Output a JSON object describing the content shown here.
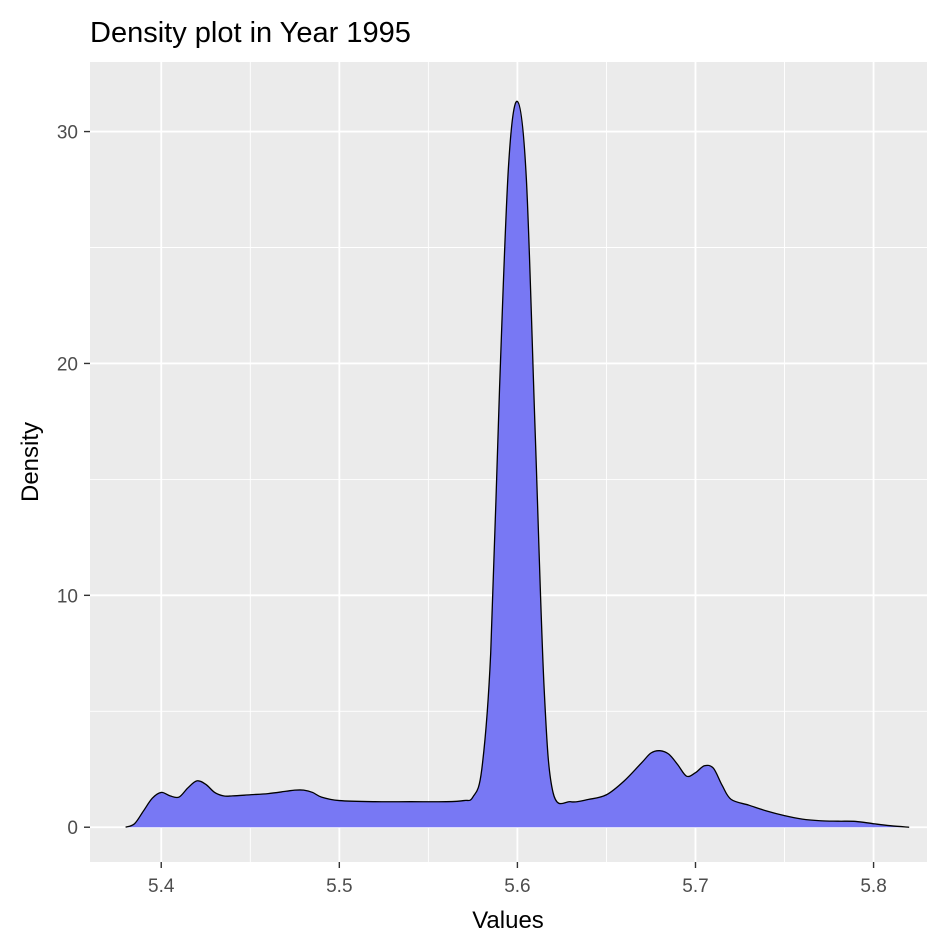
{
  "chart_data": {
    "type": "area",
    "title": "Density plot in Year 1995",
    "xlabel": "Values",
    "ylabel": "Density",
    "xlim": [
      5.36,
      5.83
    ],
    "ylim": [
      -1.5,
      33.0
    ],
    "x_ticks": [
      5.4,
      5.5,
      5.6,
      5.7,
      5.8
    ],
    "x_tick_labels": [
      "5.4",
      "5.5",
      "5.6",
      "5.7",
      "5.8"
    ],
    "y_ticks": [
      0,
      10,
      20,
      30
    ],
    "y_tick_labels": [
      "0",
      "10",
      "20",
      "30"
    ],
    "grid": true,
    "fill_color": "#7878f4",
    "line_color": "#000000",
    "panel_background": "#ebebeb",
    "grid_color": "#ffffff",
    "x": [
      5.38,
      5.385,
      5.39,
      5.395,
      5.4,
      5.405,
      5.41,
      5.415,
      5.42,
      5.425,
      5.43,
      5.435,
      5.44,
      5.45,
      5.46,
      5.47,
      5.475,
      5.48,
      5.485,
      5.49,
      5.5,
      5.52,
      5.54,
      5.56,
      5.57,
      5.575,
      5.58,
      5.585,
      5.59,
      5.595,
      5.6,
      5.605,
      5.61,
      5.615,
      5.62,
      5.63,
      5.64,
      5.65,
      5.66,
      5.67,
      5.675,
      5.68,
      5.685,
      5.69,
      5.695,
      5.7,
      5.705,
      5.71,
      5.715,
      5.72,
      5.73,
      5.74,
      5.75,
      5.76,
      5.77,
      5.78,
      5.79,
      5.8,
      5.81,
      5.82
    ],
    "y": [
      0.0,
      0.15,
      0.7,
      1.25,
      1.5,
      1.35,
      1.3,
      1.7,
      2.0,
      1.85,
      1.5,
      1.35,
      1.35,
      1.4,
      1.45,
      1.55,
      1.6,
      1.6,
      1.5,
      1.3,
      1.15,
      1.1,
      1.1,
      1.1,
      1.15,
      1.3,
      2.5,
      7.5,
      19.0,
      28.5,
      31.3,
      28.0,
      17.0,
      6.0,
      1.5,
      1.1,
      1.2,
      1.4,
      2.0,
      2.8,
      3.2,
      3.3,
      3.15,
      2.7,
      2.2,
      2.35,
      2.65,
      2.55,
      1.8,
      1.2,
      0.95,
      0.7,
      0.5,
      0.35,
      0.28,
      0.26,
      0.25,
      0.15,
      0.06,
      0.0
    ]
  }
}
